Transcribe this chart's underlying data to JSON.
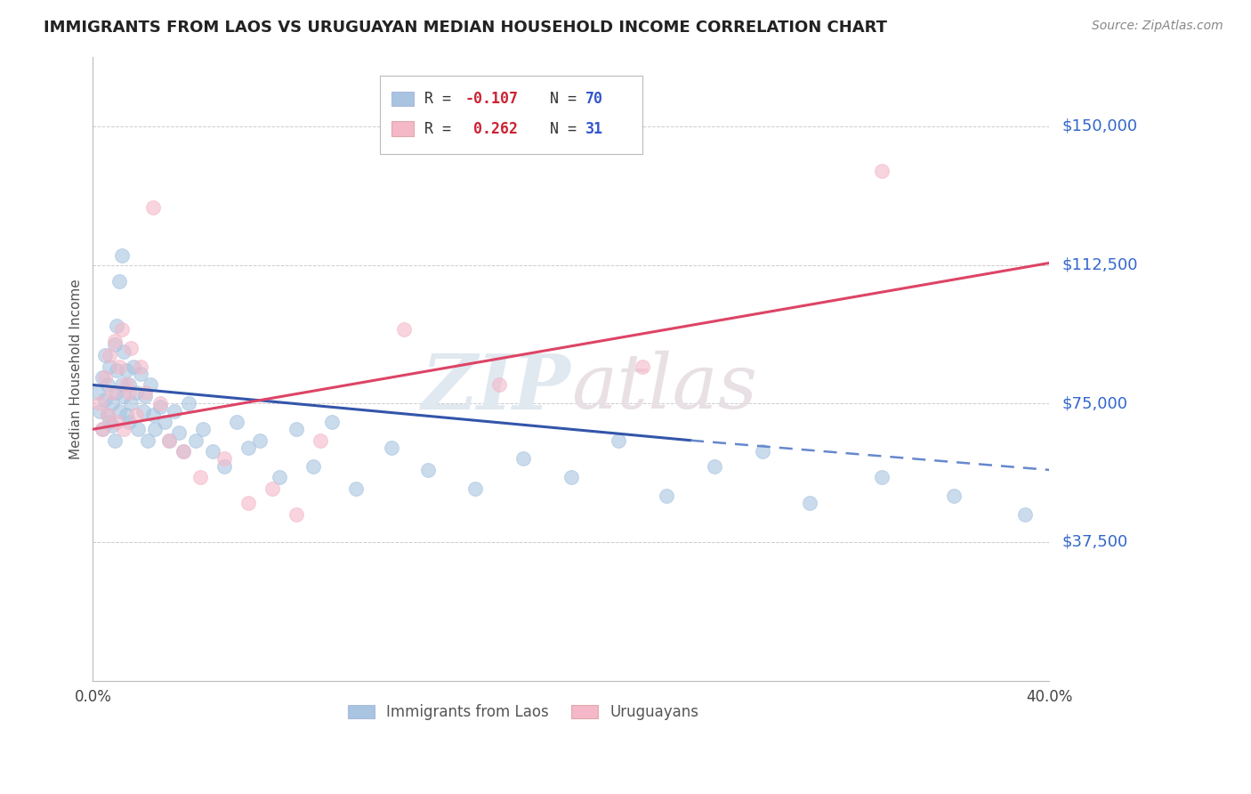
{
  "title": "IMMIGRANTS FROM LAOS VS URUGUAYAN MEDIAN HOUSEHOLD INCOME CORRELATION CHART",
  "source": "Source: ZipAtlas.com",
  "ylabel": "Median Household Income",
  "xlim": [
    0.0,
    0.4
  ],
  "ylim": [
    0,
    168750
  ],
  "ytick_vals": [
    0,
    37500,
    75000,
    112500,
    150000
  ],
  "ytick_labels": [
    "",
    "$37,500",
    "$75,000",
    "$112,500",
    "$150,000"
  ],
  "xtick_vals": [
    0.0,
    0.04,
    0.08,
    0.12,
    0.16,
    0.2,
    0.24,
    0.28,
    0.32,
    0.36,
    0.4
  ],
  "xtick_show": [
    "0.0%",
    "",
    "",
    "",
    "",
    "",
    "",
    "",
    "",
    "",
    "40.0%"
  ],
  "watermark": "ZIPatlas",
  "blue_color": "#a8c4e0",
  "pink_color": "#f4b8c8",
  "trend_blue_solid_color": "#3355aa",
  "trend_blue_dash_color": "#6688cc",
  "trend_pink_color": "#dd4466",
  "blue_r": "-0.107",
  "blue_n": "70",
  "pink_r": "0.262",
  "pink_n": "31",
  "blue_scatter_x": [
    0.002,
    0.003,
    0.004,
    0.004,
    0.005,
    0.005,
    0.006,
    0.006,
    0.007,
    0.007,
    0.008,
    0.008,
    0.009,
    0.009,
    0.01,
    0.01,
    0.01,
    0.011,
    0.011,
    0.012,
    0.012,
    0.013,
    0.013,
    0.014,
    0.014,
    0.015,
    0.015,
    0.016,
    0.017,
    0.018,
    0.019,
    0.02,
    0.021,
    0.022,
    0.023,
    0.024,
    0.025,
    0.026,
    0.028,
    0.03,
    0.032,
    0.034,
    0.036,
    0.038,
    0.04,
    0.043,
    0.046,
    0.05,
    0.055,
    0.06,
    0.065,
    0.07,
    0.078,
    0.085,
    0.092,
    0.1,
    0.11,
    0.125,
    0.14,
    0.16,
    0.18,
    0.2,
    0.22,
    0.24,
    0.26,
    0.28,
    0.3,
    0.33,
    0.36,
    0.39
  ],
  "blue_scatter_y": [
    78000,
    73000,
    82000,
    68000,
    76000,
    88000,
    72000,
    80000,
    70000,
    85000,
    69000,
    75000,
    91000,
    65000,
    84000,
    78000,
    96000,
    73000,
    108000,
    80000,
    115000,
    77000,
    89000,
    72000,
    84000,
    80000,
    70000,
    75000,
    85000,
    78000,
    68000,
    83000,
    73000,
    77000,
    65000,
    80000,
    72000,
    68000,
    74000,
    70000,
    65000,
    73000,
    67000,
    62000,
    75000,
    65000,
    68000,
    62000,
    58000,
    70000,
    63000,
    65000,
    55000,
    68000,
    58000,
    70000,
    52000,
    63000,
    57000,
    52000,
    60000,
    55000,
    65000,
    50000,
    58000,
    62000,
    48000,
    55000,
    50000,
    45000
  ],
  "pink_scatter_x": [
    0.003,
    0.004,
    0.005,
    0.006,
    0.007,
    0.008,
    0.009,
    0.01,
    0.011,
    0.012,
    0.013,
    0.014,
    0.015,
    0.016,
    0.018,
    0.02,
    0.022,
    0.025,
    0.028,
    0.032,
    0.038,
    0.045,
    0.055,
    0.065,
    0.075,
    0.085,
    0.095,
    0.13,
    0.17,
    0.23,
    0.33
  ],
  "pink_scatter_y": [
    75000,
    68000,
    82000,
    72000,
    88000,
    78000,
    92000,
    70000,
    85000,
    95000,
    68000,
    80000,
    78000,
    90000,
    72000,
    85000,
    78000,
    128000,
    75000,
    65000,
    62000,
    55000,
    60000,
    48000,
    52000,
    45000,
    65000,
    95000,
    80000,
    85000,
    138000
  ]
}
